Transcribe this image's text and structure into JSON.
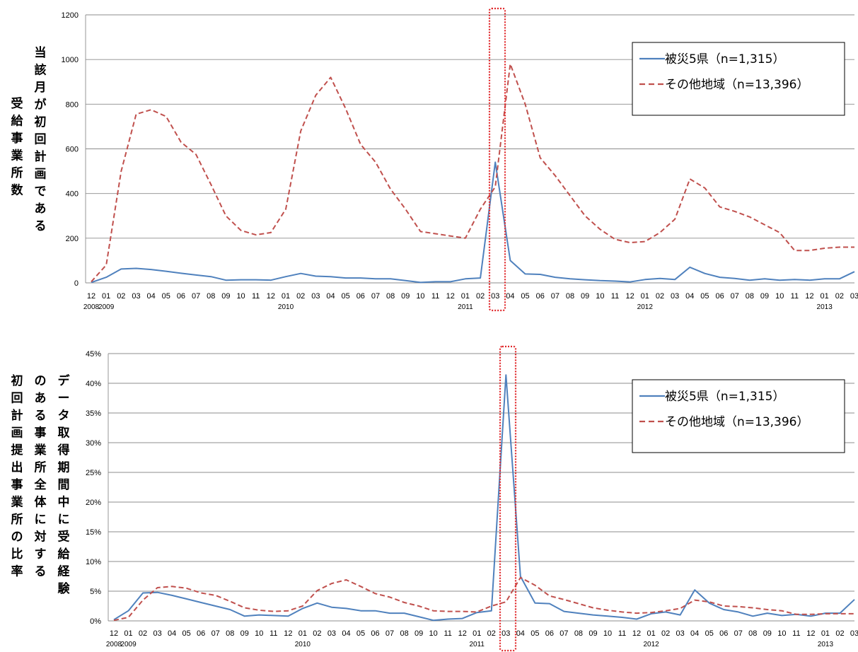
{
  "chart_data": [
    {
      "type": "line",
      "y_axis_label_lines": [
        "受給事業所数",
        "当該月が初回計画である"
      ],
      "y_ticks": [
        "0",
        "200",
        "400",
        "600",
        "800",
        "1000",
        "1200"
      ],
      "ylim": [
        0,
        1200
      ],
      "categories": [
        "12",
        "01",
        "02",
        "03",
        "04",
        "05",
        "06",
        "07",
        "08",
        "09",
        "10",
        "11",
        "12",
        "01",
        "02",
        "03",
        "04",
        "05",
        "06",
        "07",
        "08",
        "09",
        "10",
        "11",
        "12",
        "01",
        "02",
        "03",
        "04",
        "05",
        "06",
        "07",
        "08",
        "09",
        "10",
        "11",
        "12",
        "01",
        "02",
        "03",
        "04",
        "05",
        "06",
        "07",
        "08",
        "09",
        "10",
        "11",
        "12",
        "01",
        "02",
        "03"
      ],
      "year_labels": [
        {
          "text": "2008",
          "index": 0
        },
        {
          "text": "2009",
          "index": 1
        },
        {
          "text": "2010",
          "index": 13
        },
        {
          "text": "2011",
          "index": 25
        },
        {
          "text": "2012",
          "index": 37
        },
        {
          "text": "2013",
          "index": 49
        }
      ],
      "highlight_index": 27,
      "series": [
        {
          "name": "被災5県（n=1,315）",
          "color": "#4f81bd",
          "dash": "solid",
          "values": [
            2,
            25,
            62,
            65,
            60,
            52,
            43,
            35,
            28,
            12,
            14,
            14,
            12,
            28,
            42,
            30,
            28,
            22,
            22,
            18,
            18,
            10,
            2,
            5,
            5,
            18,
            22,
            540,
            100,
            40,
            38,
            25,
            18,
            14,
            10,
            8,
            4,
            15,
            20,
            15,
            70,
            42,
            25,
            20,
            12,
            18,
            12,
            15,
            12,
            18,
            18,
            50
          ]
        },
        {
          "name": "その他地域（n=13,396）",
          "color": "#c0504d",
          "dash": "dashed",
          "values": [
            5,
            80,
            500,
            755,
            775,
            745,
            630,
            575,
            440,
            300,
            235,
            215,
            225,
            330,
            680,
            840,
            920,
            780,
            620,
            540,
            420,
            330,
            230,
            220,
            210,
            200,
            330,
            430,
            980,
            800,
            560,
            480,
            390,
            300,
            240,
            195,
            180,
            185,
            225,
            285,
            465,
            425,
            340,
            320,
            295,
            260,
            225,
            145,
            145,
            155,
            160,
            160
          ]
        }
      ]
    },
    {
      "type": "line",
      "y_axis_label_lines": [
        "初回計画提出事業所の比率",
        "のある事業所全体に対する",
        "データ取得期間中に受給経験"
      ],
      "y_ticks": [
        "0%",
        "5%",
        "10%",
        "15%",
        "20%",
        "25%",
        "30%",
        "35%",
        "40%",
        "45%"
      ],
      "ylim": [
        0,
        45
      ],
      "categories": [
        "12",
        "01",
        "02",
        "03",
        "04",
        "05",
        "06",
        "07",
        "08",
        "09",
        "10",
        "11",
        "12",
        "01",
        "02",
        "03",
        "04",
        "05",
        "06",
        "07",
        "08",
        "09",
        "10",
        "11",
        "12",
        "01",
        "02",
        "03",
        "04",
        "05",
        "06",
        "07",
        "08",
        "09",
        "10",
        "11",
        "12",
        "01",
        "02",
        "03",
        "04",
        "05",
        "06",
        "07",
        "08",
        "09",
        "10",
        "11",
        "12",
        "01",
        "02",
        "03"
      ],
      "year_labels": [
        {
          "text": "2008",
          "index": 0
        },
        {
          "text": "2009",
          "index": 1
        },
        {
          "text": "2010",
          "index": 13
        },
        {
          "text": "2011",
          "index": 25
        },
        {
          "text": "2012",
          "index": 37
        },
        {
          "text": "2013",
          "index": 49
        }
      ],
      "highlight_index": 27,
      "series": [
        {
          "name": "被災5県（n=1,315）",
          "color": "#4f81bd",
          "dash": "solid",
          "values": [
            0.2,
            1.7,
            4.7,
            4.8,
            4.3,
            3.7,
            3.1,
            2.5,
            1.9,
            0.8,
            1.0,
            0.9,
            0.8,
            2.1,
            3.0,
            2.3,
            2.1,
            1.7,
            1.7,
            1.3,
            1.3,
            0.7,
            0.1,
            0.3,
            0.4,
            1.4,
            1.7,
            41.4,
            7.5,
            3.0,
            2.9,
            1.6,
            1.3,
            1.0,
            0.8,
            0.6,
            0.3,
            1.2,
            1.5,
            1.0,
            5.2,
            3.0,
            1.9,
            1.5,
            0.8,
            1.3,
            0.9,
            1.1,
            0.8,
            1.3,
            1.3,
            3.6
          ]
        },
        {
          "name": "その他地域（n=13,396）",
          "color": "#c0504d",
          "dash": "dashed",
          "values": [
            0.1,
            0.6,
            3.5,
            5.6,
            5.8,
            5.5,
            4.7,
            4.3,
            3.3,
            2.2,
            1.8,
            1.6,
            1.7,
            2.5,
            5.1,
            6.3,
            6.9,
            5.8,
            4.6,
            4.0,
            3.1,
            2.5,
            1.7,
            1.6,
            1.6,
            1.5,
            2.5,
            3.2,
            7.3,
            6.0,
            4.2,
            3.6,
            2.9,
            2.2,
            1.8,
            1.5,
            1.3,
            1.4,
            1.7,
            2.1,
            3.5,
            3.2,
            2.5,
            2.4,
            2.2,
            1.9,
            1.7,
            1.1,
            1.1,
            1.2,
            1.2,
            1.2
          ]
        }
      ]
    }
  ]
}
